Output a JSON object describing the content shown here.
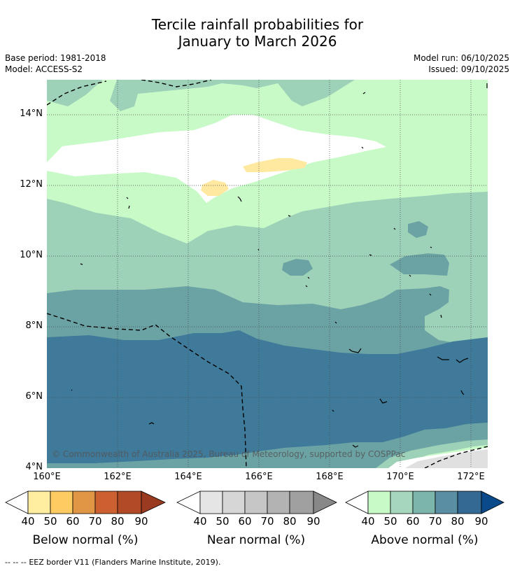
{
  "header": {
    "title_line1": "Tercile rainfall probabilities for",
    "title_line2": "January to March 2026",
    "base_period": "Base period: 1981-2018",
    "model": "Model: ACCESS-S2",
    "model_run": "Model run: 06/10/2025",
    "issued": "Issued: 09/10/2025"
  },
  "map": {
    "lat_labels": [
      "14°N",
      "12°N",
      "10°N",
      "8°N",
      "6°N",
      "4°N"
    ],
    "lon_labels": [
      "160°E",
      "162°E",
      "164°E",
      "166°E",
      "168°E",
      "170°E",
      "172°E"
    ],
    "copyright": "© Commonwealth of Australia 2025, Bureau of Meteorology, supported by COSPPac",
    "category_colors": {
      "above_40": "#c8fac8",
      "above_50": "#9dd1b8",
      "above_60": "#6ba3a5",
      "above_70": "#3f7a9a",
      "below_40": "#ffe9a0",
      "near_40": "#e0e0e0",
      "neutral": "#ffffff"
    }
  },
  "legends": [
    {
      "title": "Below normal (%)",
      "ticks": [
        "40",
        "50",
        "60",
        "70",
        "80",
        "90"
      ],
      "colors": [
        "#ffffff",
        "#ffeda0",
        "#fecb62",
        "#e19645",
        "#cc6030",
        "#b24a28",
        "#9a3a20"
      ]
    },
    {
      "title": "Near normal (%)",
      "ticks": [
        "40",
        "50",
        "60",
        "70",
        "80",
        "90"
      ],
      "colors": [
        "#ffffff",
        "#e5e5e5",
        "#d6d6d6",
        "#c6c6c6",
        "#b3b3b3",
        "#a0a0a0",
        "#888888"
      ]
    },
    {
      "title": "Above normal (%)",
      "ticks": [
        "40",
        "50",
        "60",
        "70",
        "80",
        "90"
      ],
      "colors": [
        "#ffffff",
        "#c8fac8",
        "#a6d7be",
        "#7cb5aa",
        "#5a8ea2",
        "#346994",
        "#0a4a8a"
      ]
    }
  ],
  "footer": {
    "legend_symbol": "-- -- --",
    "text": "EEZ border V11 (Flanders Marine Institute, 2019)."
  }
}
